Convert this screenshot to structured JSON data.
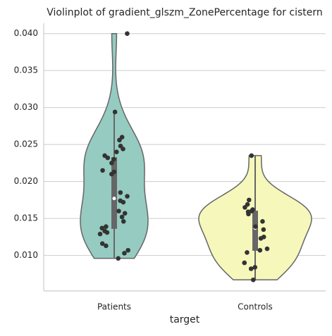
{
  "chart_data": {
    "type": "violin",
    "title": "Violinplot of gradient_glszm_ZonePercentage for cistern",
    "x_label": "target",
    "categories": [
      "Patients",
      "Controls"
    ],
    "colors": [
      "#95cbc1",
      "#f6f7bb"
    ],
    "values": [
      [
        0.04,
        0.0294,
        0.026,
        0.0256,
        0.0248,
        0.0244,
        0.024,
        0.0235,
        0.0232,
        0.023,
        0.0225,
        0.0215,
        0.0213,
        0.021,
        0.0185,
        0.018,
        0.0174,
        0.0172,
        0.016,
        0.0157,
        0.0152,
        0.0146,
        0.0139,
        0.0137,
        0.0133,
        0.0131,
        0.0129,
        0.0116,
        0.0113,
        0.0107,
        0.0103,
        0.0096
      ],
      [
        0.0235,
        0.0175,
        0.0169,
        0.0165,
        0.0162,
        0.016,
        0.0159,
        0.0156,
        0.0146,
        0.0139,
        0.0135,
        0.0125,
        0.0123,
        0.0109,
        0.0107,
        0.0104,
        0.009,
        0.0084,
        0.0082,
        0.0067
      ]
    ],
    "ylim": [
      0.0052,
      0.0414
    ],
    "yticks": [
      {
        "value": 0.01,
        "label": "0.010"
      },
      0.015,
      {
        "value": 0.02,
        "label": "0.020"
      },
      0.025,
      {
        "value": 0.03,
        "label": "0.030"
      },
      0.035,
      {
        "value": 0.04,
        "label": "0.040"
      }
    ],
    "grid": true
  }
}
